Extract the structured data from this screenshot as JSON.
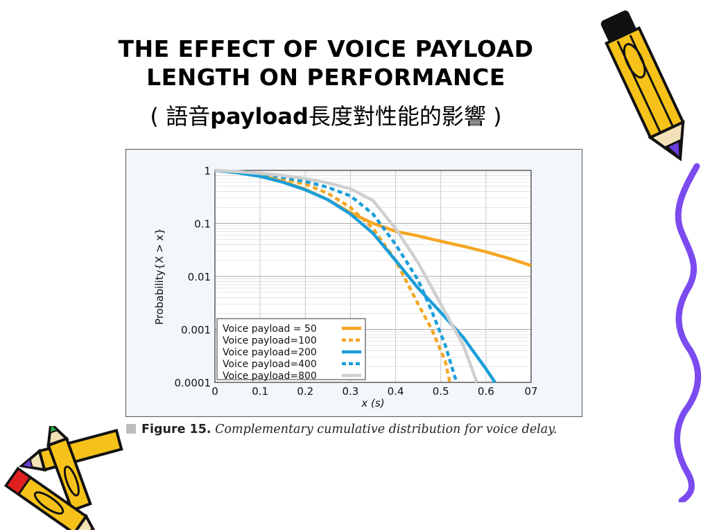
{
  "slide": {
    "title_line1": "THE EFFECT OF VOICE PAYLOAD",
    "title_line2": "LENGTH ON PERFORMANCE",
    "title_zh_open": "( 語音",
    "title_zh_bold": "payload",
    "title_zh_rest": "長度對性能的影響 )"
  },
  "caption": {
    "figure_label": "Figure 15.",
    "text": "Complementary cumulative distribution for voice delay."
  },
  "decorations": [
    "pencil-icon",
    "crayon-icon",
    "squiggle-line"
  ],
  "chart_data": {
    "type": "line",
    "xlabel": "x (s)",
    "ylabel": "Probability{X > x}",
    "xlim": [
      0,
      0.7
    ],
    "ylim": [
      0.0001,
      1
    ],
    "y_scale": "log",
    "x_ticks": [
      "0",
      "0.1",
      "0.2",
      "0.3",
      "0.4",
      "0.5",
      "0.6",
      "07"
    ],
    "y_ticks": [
      "1",
      "0.1",
      "0.01",
      "0.001",
      "0.0001"
    ],
    "grid": true,
    "legend_position": "bottom-left",
    "series": [
      {
        "name": "Voice payload = 50",
        "color": "#f5a623",
        "dash": "solid",
        "x": [
          0,
          0.05,
          0.1,
          0.15,
          0.2,
          0.25,
          0.3,
          0.35,
          0.4,
          0.45,
          0.5,
          0.55,
          0.6,
          0.65,
          0.7
        ],
        "y": [
          1,
          0.93,
          0.82,
          0.62,
          0.44,
          0.28,
          0.16,
          0.1,
          0.071,
          0.058,
          0.046,
          0.037,
          0.029,
          0.022,
          0.016
        ]
      },
      {
        "name": "Voice payload=100",
        "color": "#f5a623",
        "dash": "dotted",
        "x": [
          0,
          0.05,
          0.1,
          0.15,
          0.2,
          0.25,
          0.3,
          0.35,
          0.4,
          0.45,
          0.48,
          0.51,
          0.52
        ],
        "y": [
          1,
          0.93,
          0.84,
          0.7,
          0.55,
          0.37,
          0.2,
          0.08,
          0.02,
          0.003,
          0.001,
          0.00025,
          0.0001
        ]
      },
      {
        "name": "Voice payload=200",
        "color": "#1a9ed9",
        "dash": "solid",
        "x": [
          0,
          0.05,
          0.1,
          0.15,
          0.2,
          0.25,
          0.3,
          0.35,
          0.4,
          0.45,
          0.5,
          0.55,
          0.6,
          0.62
        ],
        "y": [
          1,
          0.9,
          0.77,
          0.6,
          0.43,
          0.28,
          0.15,
          0.065,
          0.02,
          0.006,
          0.0021,
          0.0007,
          0.00018,
          0.0001
        ]
      },
      {
        "name": "Voice payload=400",
        "color": "#1a9ed9",
        "dash": "dotted",
        "x": [
          0,
          0.05,
          0.1,
          0.15,
          0.2,
          0.25,
          0.3,
          0.35,
          0.4,
          0.45,
          0.48,
          0.51,
          0.535
        ],
        "y": [
          1,
          0.94,
          0.86,
          0.74,
          0.62,
          0.48,
          0.33,
          0.15,
          0.04,
          0.0085,
          0.0022,
          0.0005,
          0.0001
        ]
      },
      {
        "name": "Voice payload=800",
        "color": "#cfcfcf",
        "dash": "solid",
        "x": [
          0,
          0.05,
          0.1,
          0.15,
          0.2,
          0.25,
          0.3,
          0.35,
          0.4,
          0.45,
          0.5,
          0.55,
          0.58
        ],
        "y": [
          1,
          0.95,
          0.88,
          0.8,
          0.7,
          0.58,
          0.45,
          0.27,
          0.08,
          0.018,
          0.003,
          0.0005,
          0.0001
        ]
      }
    ]
  }
}
